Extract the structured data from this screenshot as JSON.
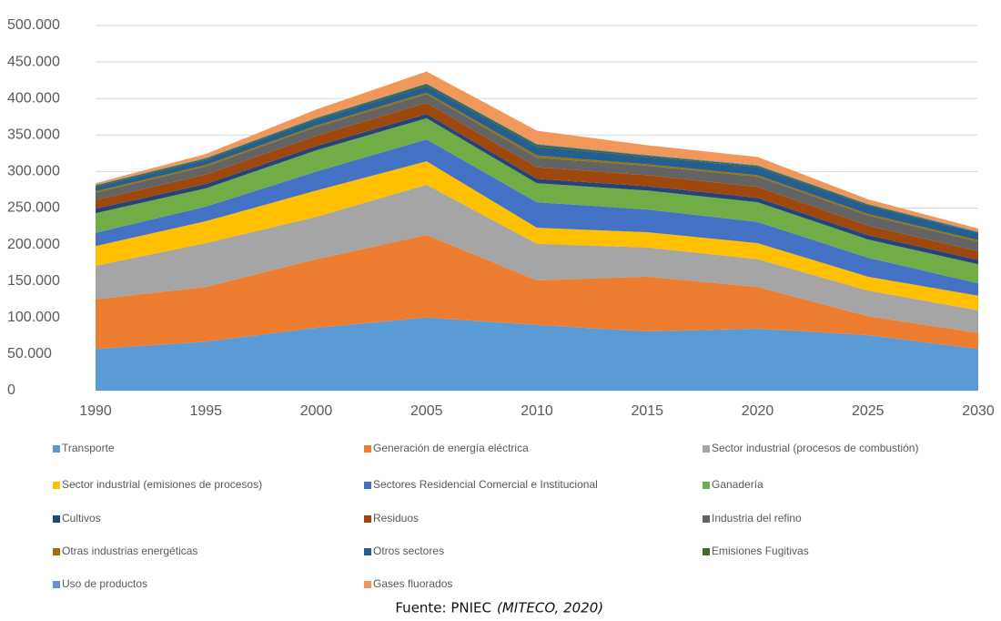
{
  "chart_data": {
    "type": "stacked-area",
    "x": [
      1990,
      1995,
      2000,
      2005,
      2010,
      2015,
      2020,
      2025,
      2030
    ],
    "xlim": [
      1990,
      2030
    ],
    "xticks": [
      1990,
      1995,
      2000,
      2005,
      2010,
      2015,
      2020,
      2025,
      2030
    ],
    "ylim": [
      0,
      500000
    ],
    "yticks": [
      0,
      {
        "value": 50000,
        "label": "50.000"
      },
      {
        "value": 100000,
        "label": "100.000"
      },
      {
        "value": 150000,
        "label": "150.000"
      },
      {
        "value": 200000,
        "label": "200.000"
      },
      {
        "value": 250000,
        "label": "250.000"
      },
      {
        "value": 300000,
        "label": "300.000"
      },
      {
        "value": 350000,
        "label": "350.000"
      },
      {
        "value": 400000,
        "label": "400.000"
      },
      {
        "value": 450000,
        "label": "450.000"
      },
      {
        "value": 500000,
        "label": "500.000"
      }
    ],
    "grid": true,
    "legend": "bottom",
    "series": [
      {
        "name": "Transporte",
        "color": "#5b9bd5",
        "values": [
          57000,
          67000,
          86000,
          100000,
          90000,
          81000,
          85000,
          76000,
          57000
        ]
      },
      {
        "name": "Generación de energía eléctrica",
        "color": "#ed7d31",
        "values": [
          68000,
          75000,
          94000,
          113000,
          61000,
          75000,
          57000,
          26000,
          22000
        ]
      },
      {
        "name": "Sector industrial (procesos de combustión)",
        "color": "#a5a5a5",
        "values": [
          46000,
          60000,
          58000,
          69000,
          50000,
          40000,
          38000,
          35000,
          31000
        ]
      },
      {
        "name": "Sector industrial (emisiones de procesos)",
        "color": "#ffc000",
        "values": [
          27000,
          30000,
          36000,
          32000,
          22000,
          21000,
          22000,
          19000,
          20000
        ]
      },
      {
        "name": "Sectores Residencial Comercial e Institucional",
        "color": "#4472c4",
        "values": [
          18000,
          20000,
          26000,
          30000,
          35000,
          31000,
          29000,
          26000,
          17000
        ]
      },
      {
        "name": "Ganadería",
        "color": "#70ad47",
        "values": [
          27000,
          25000,
          29000,
          29000,
          26000,
          26000,
          27000,
          25000,
          26000
        ]
      },
      {
        "name": "Cultivos",
        "color": "#264478",
        "values": [
          6000,
          6000,
          6000,
          6000,
          6000,
          6000,
          6000,
          6000,
          6000
        ]
      },
      {
        "name": "Residuos",
        "color": "#9e480e",
        "values": [
          12000,
          13000,
          14000,
          15000,
          16000,
          15000,
          15000,
          13000,
          12000
        ]
      },
      {
        "name": "Industria del refino",
        "color": "#636363",
        "values": [
          10000,
          11000,
          12000,
          12000,
          13000,
          13000,
          14000,
          14000,
          13000
        ]
      },
      {
        "name": "Otras industrias energéticas",
        "color": "#997300",
        "values": [
          2000,
          2000,
          2000,
          2000,
          3000,
          2000,
          2000,
          2000,
          2000
        ]
      },
      {
        "name": "Otros sectores",
        "color": "#255e91",
        "values": [
          6000,
          7000,
          8000,
          9000,
          12000,
          10000,
          11000,
          11000,
          10000
        ]
      },
      {
        "name": "Emisiones Fugitivas",
        "color": "#43682b",
        "values": [
          2000,
          2000,
          2000,
          3000,
          3000,
          2000,
          2000,
          2000,
          1000
        ]
      },
      {
        "name": "Uso de productos",
        "color": "#698ed0",
        "values": [
          1000,
          1000,
          1000,
          1000,
          1000,
          1000,
          1000,
          1000,
          1000
        ]
      },
      {
        "name": "Gases fluorados",
        "color": "#f1975a",
        "values": [
          2000,
          5000,
          11000,
          16000,
          18000,
          13000,
          11000,
          6000,
          4000
        ]
      }
    ],
    "source": "Fuente: PNIEC",
    "source_italic": "(MITECO, 2020)"
  }
}
